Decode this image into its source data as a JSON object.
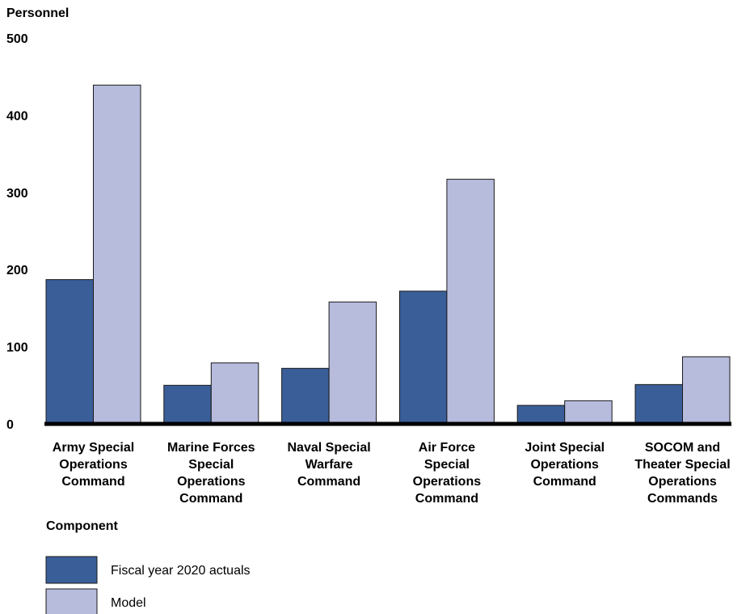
{
  "chart_data": {
    "type": "bar",
    "ylabel": "Personnel",
    "xlabel": "Component",
    "ylim": [
      0,
      500
    ],
    "yticks": [
      "0",
      "100",
      "200",
      "300",
      "400",
      "500"
    ],
    "categories": [
      [
        "Army Special",
        "Operations",
        "Command"
      ],
      [
        "Marine Forces",
        "Special",
        "Operations",
        "Command"
      ],
      [
        "Naval Special",
        "Warfare",
        "Command"
      ],
      [
        "Air Force",
        "Special",
        "Operations",
        "Command"
      ],
      [
        "Joint Special",
        "Operations",
        "Command"
      ],
      [
        "SOCOM and",
        "Theater Special",
        "Operations",
        "Commands"
      ]
    ],
    "series": [
      {
        "name": "Fiscal year 2020 actuals",
        "color": "#3a5e98",
        "values": [
          187,
          50,
          72,
          172,
          24,
          51
        ]
      },
      {
        "name": "Model",
        "color": "#b7bbdc",
        "values": [
          439,
          79,
          158,
          317,
          30,
          87
        ]
      }
    ],
    "grid": false,
    "legend_position": "bottom-left"
  }
}
